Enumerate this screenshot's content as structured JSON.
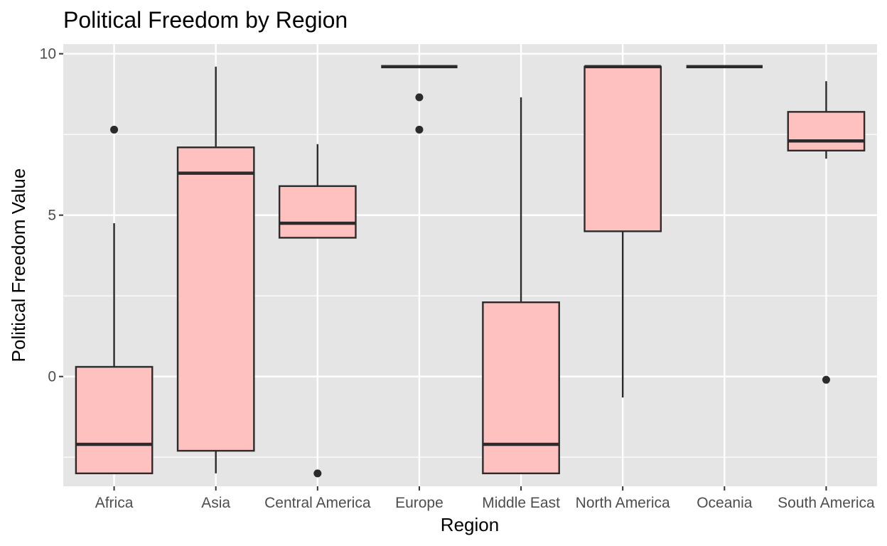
{
  "chart_data": {
    "type": "boxplot",
    "title": "Political Freedom by Region",
    "xlabel": "Region",
    "ylabel": "Political Freedom Value",
    "ylim": [
      -3.4,
      10.3
    ],
    "yticks": [
      0,
      5,
      10
    ],
    "grid": true,
    "legend": "none",
    "categories": [
      "Africa",
      "Asia",
      "Central America",
      "Europe",
      "Middle East",
      "North America",
      "Oceania",
      "South America"
    ],
    "boxes": [
      {
        "category": "Africa",
        "whisker_low": -3.0,
        "q1": -3.0,
        "median": -2.1,
        "q3": 0.3,
        "whisker_high": 4.75,
        "outliers": [
          7.65
        ]
      },
      {
        "category": "Asia",
        "whisker_low": -3.0,
        "q1": -2.3,
        "median": 6.3,
        "q3": 7.1,
        "whisker_high": 9.6,
        "outliers": []
      },
      {
        "category": "Central America",
        "whisker_low": 4.3,
        "q1": 4.3,
        "median": 4.75,
        "q3": 5.9,
        "whisker_high": 7.2,
        "outliers": [
          -3.0
        ]
      },
      {
        "category": "Europe",
        "whisker_low": 9.6,
        "q1": 9.6,
        "median": 9.6,
        "q3": 9.6,
        "whisker_high": 9.6,
        "outliers": [
          8.65,
          7.65
        ]
      },
      {
        "category": "Middle East",
        "whisker_low": -3.0,
        "q1": -3.0,
        "median": -2.1,
        "q3": 2.3,
        "whisker_high": 8.65,
        "outliers": []
      },
      {
        "category": "North America",
        "whisker_low": -0.65,
        "q1": 4.5,
        "median": 9.6,
        "q3": 9.6,
        "whisker_high": 9.6,
        "outliers": []
      },
      {
        "category": "Oceania",
        "whisker_low": 9.6,
        "q1": 9.6,
        "median": 9.6,
        "q3": 9.6,
        "whisker_high": 9.6,
        "outliers": []
      },
      {
        "category": "South America",
        "whisker_low": 6.75,
        "q1": 7.0,
        "median": 7.3,
        "q3": 8.2,
        "whisker_high": 9.15,
        "outliers": [
          -0.1
        ]
      }
    ],
    "colors": {
      "panel_background": "#e5e5e5",
      "grid": "#ffffff",
      "box_fill": "#ffc0c0",
      "box_stroke": "#2b2b2b",
      "tick_text": "#4d4d4d"
    }
  }
}
